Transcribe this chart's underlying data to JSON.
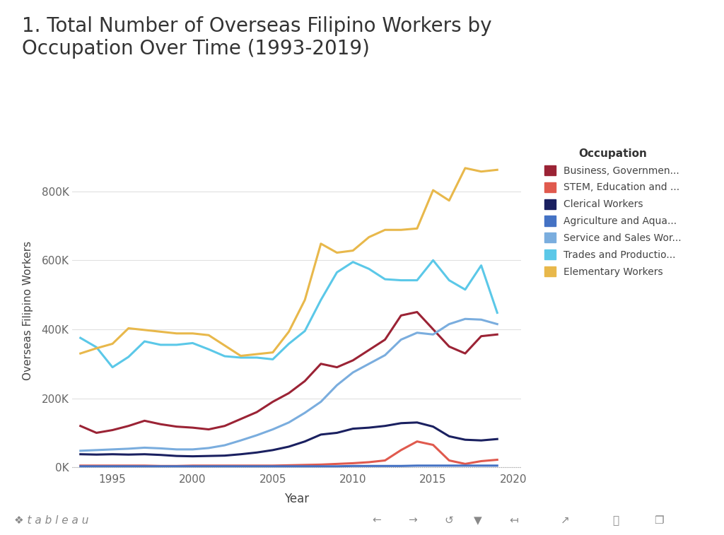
{
  "title": "1. Total Number of Overseas Filipino Workers by\nOccupation Over Time (1993-2019)",
  "xlabel": "Year",
  "ylabel": "Overseas Filipino Workers",
  "background_color": "#ffffff",
  "grid_color": "#e0e0e0",
  "legend_title": "Occupation",
  "years": [
    1993,
    1994,
    1995,
    1996,
    1997,
    1998,
    1999,
    2000,
    2001,
    2002,
    2003,
    2004,
    2005,
    2006,
    2007,
    2008,
    2009,
    2010,
    2011,
    2012,
    2013,
    2014,
    2015,
    2016,
    2017,
    2018,
    2019
  ],
  "series": [
    {
      "name": "Business, Governmen...",
      "color": "#9b2335",
      "values": [
        120000,
        100000,
        108000,
        120000,
        135000,
        125000,
        118000,
        115000,
        110000,
        120000,
        140000,
        160000,
        190000,
        215000,
        250000,
        300000,
        290000,
        310000,
        340000,
        370000,
        440000,
        450000,
        400000,
        350000,
        330000,
        380000,
        385000
      ]
    },
    {
      "name": "STEM, Education and ...",
      "color": "#e05a4e",
      "values": [
        5000,
        5000,
        5000,
        5000,
        5000,
        4000,
        4000,
        5000,
        5000,
        5000,
        5000,
        5000,
        5000,
        6000,
        7000,
        8000,
        10000,
        12000,
        15000,
        20000,
        50000,
        75000,
        65000,
        20000,
        10000,
        18000,
        22000
      ]
    },
    {
      "name": "Clerical Workers",
      "color": "#1a2060",
      "values": [
        38000,
        37000,
        38000,
        37000,
        38000,
        36000,
        33000,
        32000,
        33000,
        34000,
        38000,
        43000,
        50000,
        60000,
        75000,
        95000,
        100000,
        112000,
        115000,
        120000,
        128000,
        130000,
        118000,
        90000,
        80000,
        78000,
        82000
      ]
    },
    {
      "name": "Agriculture and Aqua...",
      "color": "#4472c4",
      "values": [
        3000,
        3000,
        3000,
        3000,
        3000,
        3000,
        3000,
        3000,
        3000,
        3000,
        3000,
        3000,
        3000,
        3000,
        3000,
        3000,
        3000,
        4000,
        4000,
        4000,
        4000,
        5000,
        5000,
        5000,
        5000,
        5000,
        5000
      ]
    },
    {
      "name": "Service and Sales Wor...",
      "color": "#7aadde",
      "values": [
        48000,
        50000,
        52000,
        54000,
        57000,
        55000,
        52000,
        52000,
        56000,
        64000,
        78000,
        93000,
        110000,
        130000,
        158000,
        190000,
        238000,
        275000,
        300000,
        325000,
        370000,
        390000,
        385000,
        415000,
        430000,
        428000,
        415000
      ]
    },
    {
      "name": "Trades and Productio...",
      "color": "#5bc8e8",
      "values": [
        375000,
        348000,
        290000,
        320000,
        365000,
        355000,
        355000,
        360000,
        342000,
        322000,
        318000,
        318000,
        313000,
        358000,
        395000,
        485000,
        565000,
        595000,
        575000,
        545000,
        542000,
        542000,
        600000,
        542000,
        515000,
        585000,
        448000
      ]
    },
    {
      "name": "Elementary Workers",
      "color": "#e8b84b",
      "values": [
        330000,
        345000,
        358000,
        403000,
        398000,
        393000,
        388000,
        388000,
        383000,
        353000,
        323000,
        328000,
        333000,
        393000,
        485000,
        648000,
        622000,
        628000,
        667000,
        688000,
        688000,
        692000,
        803000,
        773000,
        867000,
        857000,
        862000
      ]
    }
  ]
}
